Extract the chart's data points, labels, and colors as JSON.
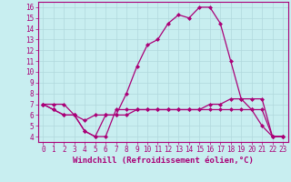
{
  "xlabel": "Windchill (Refroidissement éolien,°C)",
  "background_color": "#c8eef0",
  "grid_color": "#cccccc",
  "line_color": "#aa0077",
  "xlim": [
    -0.5,
    23.5
  ],
  "ylim": [
    3.5,
    16.5
  ],
  "xticks": [
    0,
    1,
    2,
    3,
    4,
    5,
    6,
    7,
    8,
    9,
    10,
    11,
    12,
    13,
    14,
    15,
    16,
    17,
    18,
    19,
    20,
    21,
    22,
    23
  ],
  "yticks": [
    4,
    5,
    6,
    7,
    8,
    9,
    10,
    11,
    12,
    13,
    14,
    15,
    16
  ],
  "series1": [
    7.0,
    7.0,
    7.0,
    6.0,
    4.5,
    4.0,
    6.0,
    6.0,
    8.0,
    10.5,
    12.5,
    13.0,
    14.5,
    15.3,
    15.0,
    16.0,
    16.0,
    14.5,
    11.0,
    7.5,
    6.5,
    5.0,
    4.0,
    4.0
  ],
  "series2": [
    7.0,
    6.5,
    6.0,
    6.0,
    5.5,
    6.0,
    6.0,
    6.0,
    6.0,
    6.5,
    6.5,
    6.5,
    6.5,
    6.5,
    6.5,
    6.5,
    7.0,
    7.0,
    7.5,
    7.5,
    7.5,
    7.5,
    4.0,
    4.0
  ],
  "series3": [
    7.0,
    6.5,
    6.0,
    6.0,
    4.5,
    4.0,
    4.0,
    6.5,
    6.5,
    6.5,
    6.5,
    6.5,
    6.5,
    6.5,
    6.5,
    6.5,
    6.5,
    6.5,
    6.5,
    6.5,
    6.5,
    6.5,
    4.0,
    4.0
  ],
  "marker": "D",
  "markersize": 2,
  "linewidth": 0.9,
  "tick_fontsize": 5.5,
  "label_fontsize": 6.5
}
